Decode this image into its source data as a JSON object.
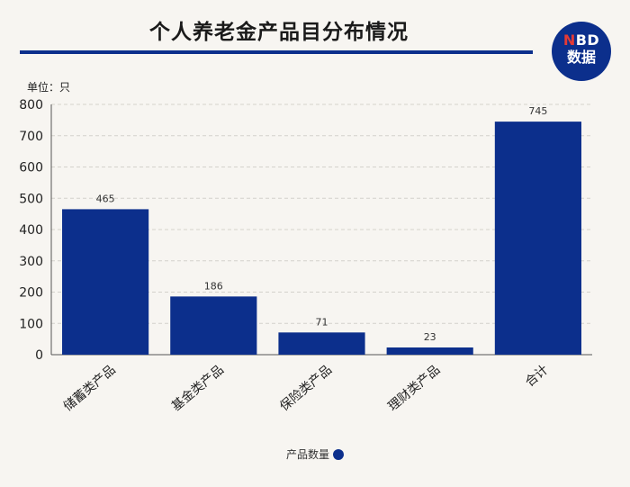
{
  "header": {
    "title": "个人养老金产品目分布情况",
    "unit": "单位：只"
  },
  "logo": {
    "top_letter": "N",
    "top_rest": "BD",
    "bottom": "数据"
  },
  "legend": {
    "label": "产品数量"
  },
  "colors": {
    "bar": "#0c2f8c",
    "accent": "#0c2f8c",
    "logo_red": "#e53a35",
    "grid": "#d4d2cc"
  },
  "chart_data": {
    "type": "bar",
    "categories": [
      "储蓄类产品",
      "基金类产品",
      "保险类产品",
      "理财类产品",
      "合计"
    ],
    "series": [
      {
        "name": "产品数量",
        "values": [
          465,
          186,
          71,
          23,
          745
        ]
      }
    ],
    "title": "个人养老金产品目分布情况",
    "ylabel": "单位：只",
    "ylim": [
      0,
      800
    ],
    "yticks": [
      0,
      100,
      200,
      300,
      400,
      500,
      600,
      700,
      800
    ],
    "grid": true,
    "legend_position": "bottom-center"
  }
}
